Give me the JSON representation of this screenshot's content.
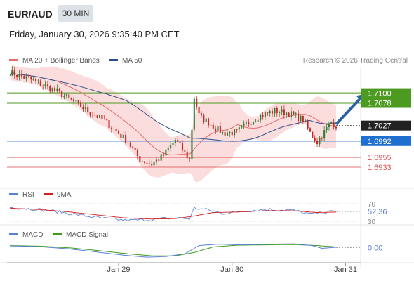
{
  "header": {
    "symbol": "EUR/AUD",
    "timeframe": "30 MIN",
    "datetime": "Friday, January 30, 2026 9:35:40 PM CET"
  },
  "credit": "Research © 2026 Trading Central",
  "colors": {
    "ma20": "#e86a6a",
    "ma50": "#2b4f8a",
    "bollinger_fill": "#f9d2d2",
    "resistance": "#4c9a1f",
    "support": "#1f6fd1",
    "support_red": "#e05555",
    "bull": "#2e7d32",
    "bear": "#c62828",
    "arrow": "#2a62a8",
    "rsi": "#5a7fd6",
    "rsi_ma": "#d32020",
    "macd": "#5a7fd6",
    "macd_signal": "#3a9a1a"
  },
  "chart_data": [
    {
      "type": "candlestick",
      "panel": "price",
      "legend": [
        {
          "name": "MA 20 + Bollinger Bands",
          "color": "#e86a6a"
        },
        {
          "name": "MA 50",
          "color": "#2b4f8a"
        }
      ],
      "ylim": [
        1.6895,
        1.7158
      ],
      "x_ticks": [
        {
          "label": "Jan 29",
          "index": 46
        },
        {
          "label": "Jan 30",
          "index": 94
        },
        {
          "label": "Jan 31",
          "index": 142
        }
      ],
      "close_path": [
        [
          0,
          1.7148
        ],
        [
          10,
          1.7128
        ],
        [
          20,
          1.7104
        ],
        [
          30,
          1.707
        ],
        [
          40,
          1.7038
        ],
        [
          50,
          1.699
        ],
        [
          55,
          1.695
        ],
        [
          60,
          1.694
        ],
        [
          65,
          1.696
        ],
        [
          70,
          1.6995
        ],
        [
          76,
          1.695
        ],
        [
          78,
          1.709
        ],
        [
          80,
          1.705
        ],
        [
          85,
          1.703
        ],
        [
          90,
          1.701
        ],
        [
          96,
          1.7012
        ],
        [
          100,
          1.703
        ],
        [
          106,
          1.705
        ],
        [
          112,
          1.706
        ],
        [
          118,
          1.7055
        ],
        [
          124,
          1.704
        ],
        [
          127,
          1.701
        ],
        [
          130,
          1.699
        ],
        [
          134,
          1.702
        ],
        [
          136,
          1.7035
        ],
        [
          138,
          1.7027
        ]
      ],
      "candle_count": 138,
      "last_price": 1.7027,
      "levels": [
        {
          "value": 1.71,
          "label": "1.7100",
          "kind": "resistance",
          "boxed": true
        },
        {
          "value": 1.7078,
          "label": "1.7078",
          "kind": "resistance",
          "boxed": true
        },
        {
          "value": 1.7027,
          "label": "1.7027",
          "kind": "last",
          "boxed": true
        },
        {
          "value": 1.6992,
          "label": "1.6992",
          "kind": "pivot",
          "boxed": true
        },
        {
          "value": 1.6955,
          "label": "1.6955",
          "kind": "support",
          "boxed": false
        },
        {
          "value": 1.6933,
          "label": "1.6933",
          "kind": "support",
          "boxed": false
        }
      ],
      "forecast_arrow": {
        "from": [
          138,
          1.703
        ],
        "to": [
          150,
          1.7098
        ]
      }
    },
    {
      "type": "line",
      "panel": "rsi",
      "legend": [
        {
          "name": "RSI",
          "color": "#5a7fd6"
        },
        {
          "name": "9MA",
          "color": "#d32020"
        }
      ],
      "ylim": [
        25,
        75
      ],
      "ticks": [
        70,
        30
      ],
      "last_value": "52.36",
      "rsi_path": [
        [
          0,
          62
        ],
        [
          10,
          58
        ],
        [
          20,
          52
        ],
        [
          30,
          44
        ],
        [
          40,
          36
        ],
        [
          50,
          32
        ],
        [
          60,
          34
        ],
        [
          70,
          38
        ],
        [
          76,
          36
        ],
        [
          78,
          60
        ],
        [
          84,
          56
        ],
        [
          90,
          48
        ],
        [
          100,
          54
        ],
        [
          110,
          57
        ],
        [
          120,
          55
        ],
        [
          127,
          46
        ],
        [
          132,
          50
        ],
        [
          138,
          52.36
        ]
      ],
      "ma_path": [
        [
          0,
          60
        ],
        [
          12,
          57
        ],
        [
          24,
          52
        ],
        [
          36,
          45
        ],
        [
          48,
          38
        ],
        [
          60,
          35
        ],
        [
          70,
          36
        ],
        [
          78,
          42
        ],
        [
          86,
          50
        ],
        [
          96,
          51
        ],
        [
          108,
          54
        ],
        [
          120,
          54
        ],
        [
          130,
          50
        ],
        [
          138,
          51
        ]
      ]
    },
    {
      "type": "line",
      "panel": "macd",
      "legend": [
        {
          "name": "MACD",
          "color": "#5a7fd6"
        },
        {
          "name": "MACD Signal",
          "color": "#3a9a1a"
        }
      ],
      "ylim": [
        -0.004,
        0.004
      ],
      "last_value": "0.00",
      "macd_path": [
        [
          0,
          0.0005
        ],
        [
          12,
          0.0003
        ],
        [
          24,
          -0.0003
        ],
        [
          36,
          -0.0012
        ],
        [
          48,
          -0.0022
        ],
        [
          58,
          -0.0028
        ],
        [
          66,
          -0.0026
        ],
        [
          74,
          -0.0018
        ],
        [
          80,
          0.0006
        ],
        [
          88,
          0.001
        ],
        [
          98,
          0.0008
        ],
        [
          110,
          0.001
        ],
        [
          120,
          0.0011
        ],
        [
          128,
          0.0006
        ],
        [
          132,
          -0.0002
        ],
        [
          138,
          0.0001
        ]
      ],
      "signal_path": [
        [
          0,
          0.0006
        ],
        [
          14,
          0.0004
        ],
        [
          26,
          -0.0001
        ],
        [
          38,
          -0.0009
        ],
        [
          50,
          -0.0018
        ],
        [
          60,
          -0.0024
        ],
        [
          70,
          -0.0024
        ],
        [
          78,
          -0.0014
        ],
        [
          86,
          0.0002
        ],
        [
          96,
          0.0007
        ],
        [
          108,
          0.0008
        ],
        [
          120,
          0.0009
        ],
        [
          130,
          0.0006
        ],
        [
          138,
          0.0002
        ]
      ]
    }
  ]
}
